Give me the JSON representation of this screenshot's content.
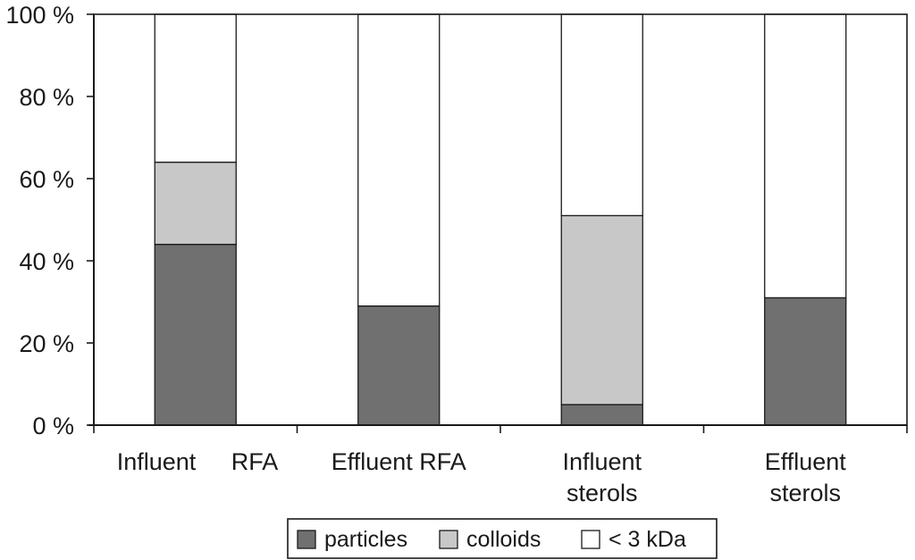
{
  "chart_data": {
    "type": "bar",
    "stacked": true,
    "percent": true,
    "categories": [
      [
        "Influent",
        "RFA"
      ],
      [
        "Effluent RFA"
      ],
      [
        "Influent",
        "sterols"
      ],
      [
        "Effluent",
        "sterols"
      ]
    ],
    "series": [
      {
        "name": "particles",
        "color": "#707070",
        "values": [
          44,
          29,
          5,
          31
        ]
      },
      {
        "name": "colloids",
        "color": "#c8c8c8",
        "values": [
          20,
          0,
          46,
          0
        ]
      },
      {
        "name": "< 3 kDa",
        "color": "#ffffff",
        "values": [
          36,
          71,
          49,
          69
        ]
      }
    ],
    "y_ticks": [
      "0 %",
      "20 %",
      "40 %",
      "60 %",
      "80 %",
      "100 %"
    ],
    "ylim": [
      0,
      100
    ],
    "grid": false,
    "legend_position": "bottom"
  }
}
